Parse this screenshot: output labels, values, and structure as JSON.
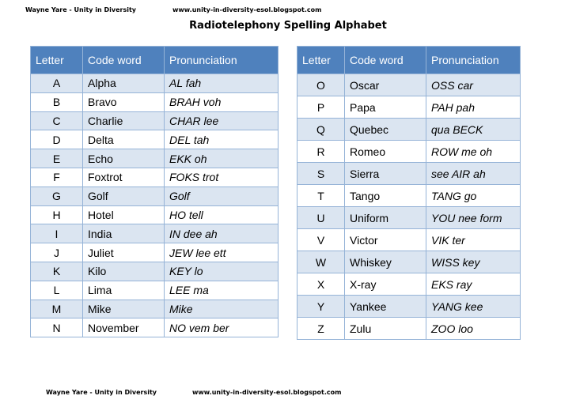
{
  "header": {
    "author": "Wayne Yare - Unity in Diversity",
    "url": "www.unity-in-diversity-esol.blogspot.com"
  },
  "title": "Radiotelephony Spelling Alphabet",
  "columns": [
    "Letter",
    "Code word",
    "Pronunciation"
  ],
  "left_rows": [
    [
      "A",
      "Alpha",
      "AL fah"
    ],
    [
      "B",
      "Bravo",
      "BRAH voh"
    ],
    [
      "C",
      "Charlie",
      "CHAR lee"
    ],
    [
      "D",
      "Delta",
      "DEL tah"
    ],
    [
      "E",
      "Echo",
      "EKK oh"
    ],
    [
      "F",
      "Foxtrot",
      "FOKS trot"
    ],
    [
      "G",
      "Golf",
      "Golf"
    ],
    [
      "H",
      "Hotel",
      "HO tell"
    ],
    [
      "I",
      "India",
      "IN dee ah"
    ],
    [
      "J",
      "Juliet",
      "JEW lee ett"
    ],
    [
      "K",
      "Kilo",
      "KEY lo"
    ],
    [
      "L",
      "Lima",
      "LEE ma"
    ],
    [
      "M",
      "Mike",
      "Mike"
    ],
    [
      "N",
      "November",
      "NO vem ber"
    ]
  ],
  "right_rows": [
    [
      "O",
      "Oscar",
      "OSS car"
    ],
    [
      "P",
      "Papa",
      "PAH pah"
    ],
    [
      "Q",
      "Quebec",
      "qua BECK"
    ],
    [
      "R",
      "Romeo",
      "ROW me oh"
    ],
    [
      "S",
      "Sierra",
      "see AIR ah"
    ],
    [
      "T",
      "Tango",
      "TANG go"
    ],
    [
      "U",
      "Uniform",
      "YOU nee form"
    ],
    [
      "V",
      "Victor",
      "VIK ter"
    ],
    [
      "W",
      "Whiskey",
      "WISS key"
    ],
    [
      "X",
      "X-ray",
      "EKS ray"
    ],
    [
      "Y",
      "Yankee",
      "YANG kee"
    ],
    [
      "Z",
      "Zulu",
      "ZOO loo"
    ]
  ],
  "footer": {
    "author": "Wayne Yare - Unity in Diversity",
    "url": "www.unity-in-diversity-esol.blogspot.com"
  }
}
